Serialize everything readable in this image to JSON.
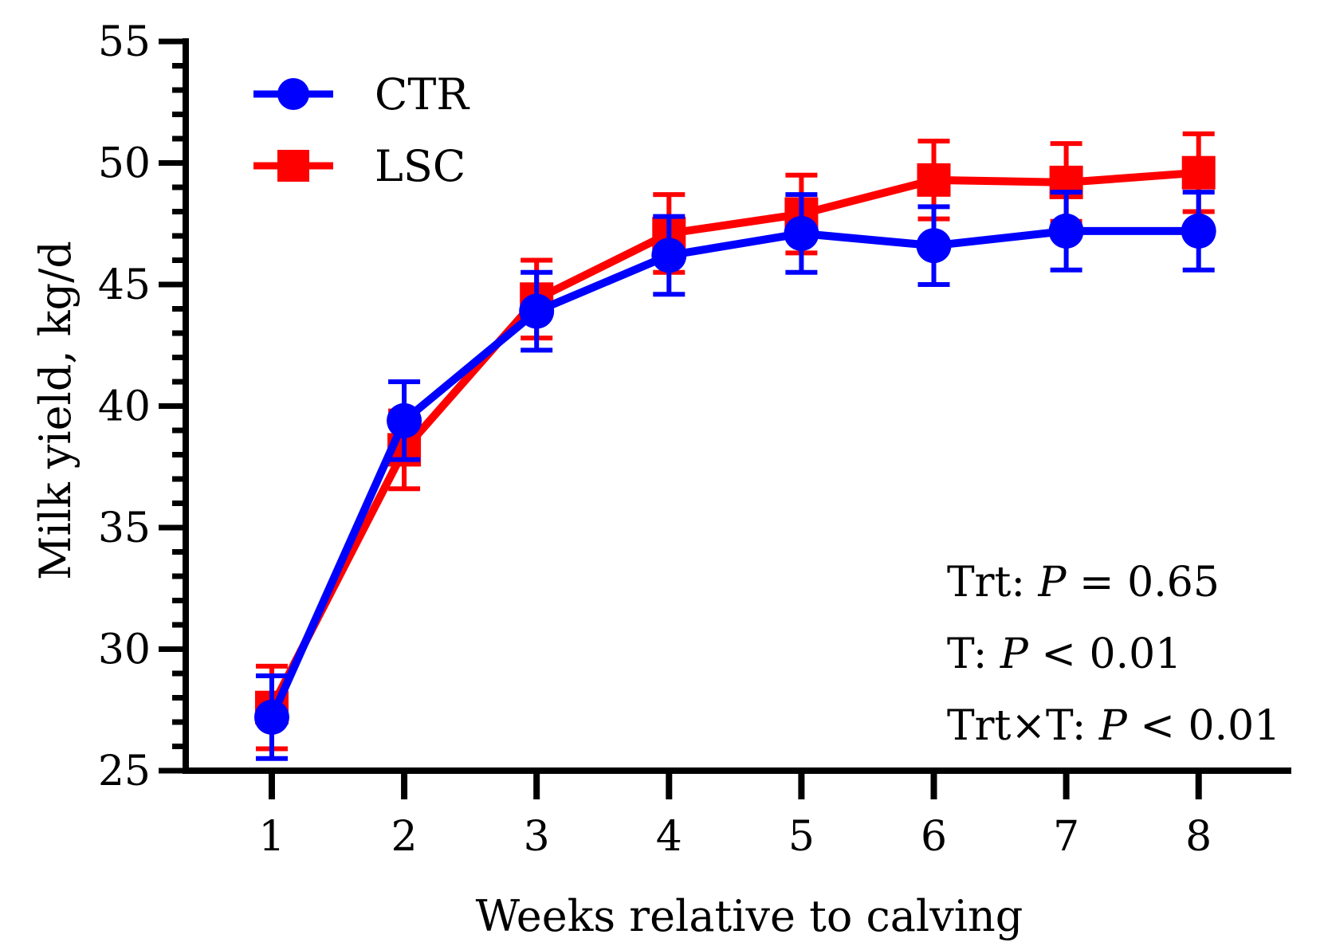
{
  "chart_data": {
    "type": "line",
    "title": "",
    "xlabel": "Weeks relative to calving",
    "ylabel": "Milk yield, kg/d",
    "x": [
      1,
      2,
      3,
      4,
      5,
      6,
      7,
      8
    ],
    "x_tick_labels": [
      "1",
      "2",
      "3",
      "4",
      "5",
      "6",
      "7",
      "8"
    ],
    "xlim": [
      0.35,
      8.7
    ],
    "ylim": [
      25,
      55
    ],
    "y_ticks": [
      25,
      30,
      35,
      40,
      45,
      50,
      55
    ],
    "y_tick_labels": [
      "25",
      "30",
      "35",
      "40",
      "45",
      "50",
      "55"
    ],
    "y_minor_step": 1,
    "grid": false,
    "legend_position": "top-left",
    "series": [
      {
        "name": "LSC",
        "color": "#ff0000",
        "marker": "square",
        "values": [
          27.6,
          38.2,
          44.4,
          47.1,
          47.9,
          49.3,
          49.2,
          49.6
        ],
        "errors": [
          1.7,
          1.6,
          1.6,
          1.6,
          1.6,
          1.6,
          1.6,
          1.6
        ]
      },
      {
        "name": "CTR",
        "color": "#0000ff",
        "marker": "circle",
        "values": [
          27.2,
          39.4,
          43.9,
          46.2,
          47.1,
          46.6,
          47.2,
          47.2
        ],
        "errors": [
          1.7,
          1.6,
          1.6,
          1.6,
          1.6,
          1.6,
          1.6,
          1.6
        ]
      }
    ],
    "annotations": {
      "trt_label": "Trt: ",
      "trt_p": "P",
      "trt_value": " = 0.65",
      "t_label": "T: ",
      "t_p": "P",
      "t_value": " < 0.01",
      "trtxt_label": "Trt×T: ",
      "trtxt_p": "P",
      "trtxt_value": " < 0.01"
    }
  }
}
